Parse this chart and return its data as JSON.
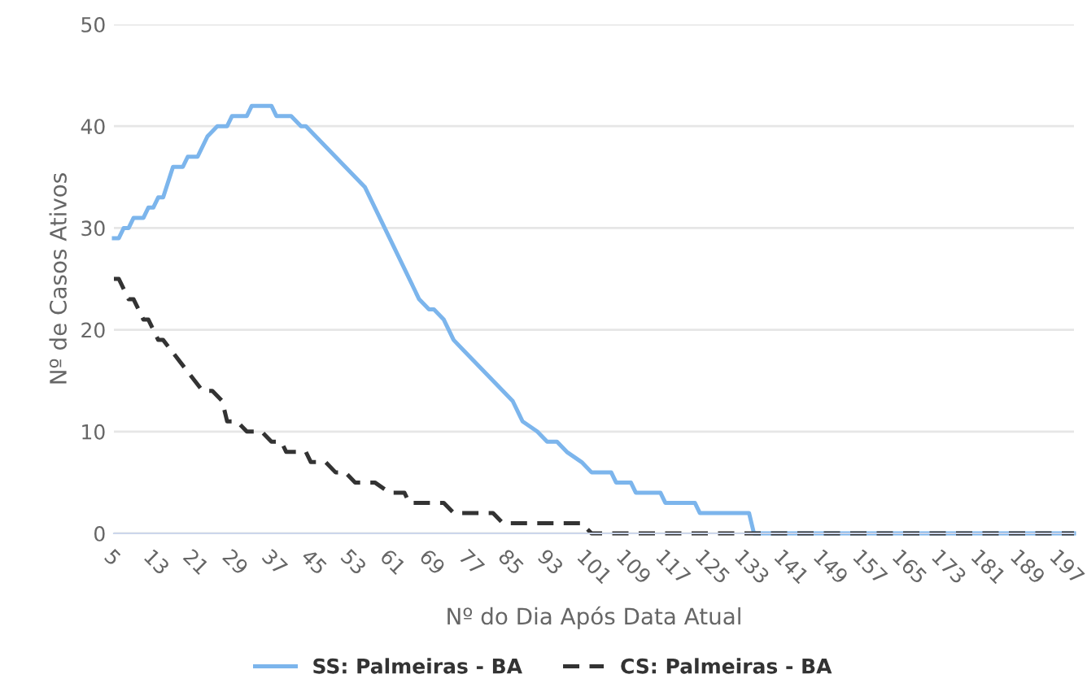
{
  "chart_data": {
    "type": "line",
    "xlabel": "Nº do Dia Após Data Atual",
    "ylabel": "Nº de Casos Ativos",
    "xlim": [
      5,
      200
    ],
    "xticks": [
      5,
      13,
      21,
      29,
      37,
      45,
      53,
      61,
      69,
      77,
      85,
      93,
      101,
      109,
      117,
      125,
      133,
      141,
      149,
      157,
      165,
      173,
      181,
      189,
      197
    ],
    "ylim": [
      0,
      50
    ],
    "yticks": [
      0,
      10,
      20,
      30,
      40,
      50
    ],
    "grid": "y",
    "legend": "bottom",
    "series": [
      {
        "name": "SS: Palmeiras - BA",
        "color": "#7cb5ec",
        "line_style": "solid",
        "x": [
          5,
          6,
          7,
          8,
          9,
          11,
          12,
          13,
          14,
          15,
          17,
          19,
          20,
          22,
          23,
          24,
          26,
          28,
          29,
          32,
          33,
          37,
          38,
          41,
          43,
          44,
          46,
          48,
          50,
          52,
          54,
          56,
          58,
          66,
          67,
          69,
          70,
          72,
          74,
          76,
          78,
          80,
          82,
          84,
          86,
          88,
          91,
          93,
          95,
          97,
          100,
          102,
          106,
          107,
          110,
          111,
          116,
          117,
          123,
          124,
          134,
          135,
          200
        ],
        "values": [
          29,
          29,
          30,
          30,
          31,
          31,
          32,
          32,
          33,
          33,
          36,
          36,
          37,
          37,
          38,
          39,
          40,
          40,
          41,
          41,
          42,
          42,
          41,
          41,
          40,
          40,
          39,
          38,
          37,
          36,
          35,
          34,
          32,
          24,
          23,
          22,
          22,
          21,
          19,
          18,
          17,
          16,
          15,
          14,
          13,
          11,
          10,
          9,
          9,
          8,
          7,
          6,
          6,
          5,
          5,
          4,
          4,
          3,
          3,
          2,
          2,
          0,
          0
        ]
      },
      {
        "name": "CS: Palmeiras - BA",
        "color": "#333333",
        "line_style": "dashed",
        "x": [
          5,
          6,
          8,
          9,
          11,
          12,
          14,
          15,
          23,
          25,
          27,
          28,
          30,
          32,
          35,
          37,
          39,
          40,
          44,
          45,
          48,
          50,
          52,
          54,
          58,
          61,
          64,
          65,
          72,
          74,
          82,
          84,
          100,
          102,
          200
        ],
        "values": [
          25,
          25,
          23,
          23,
          21,
          21,
          19,
          19,
          14,
          14,
          13,
          11,
          11,
          10,
          10,
          9,
          9,
          8,
          8,
          7,
          7,
          6,
          6,
          5,
          5,
          4,
          4,
          3,
          3,
          2,
          2,
          1,
          1,
          0,
          0
        ]
      }
    ]
  }
}
